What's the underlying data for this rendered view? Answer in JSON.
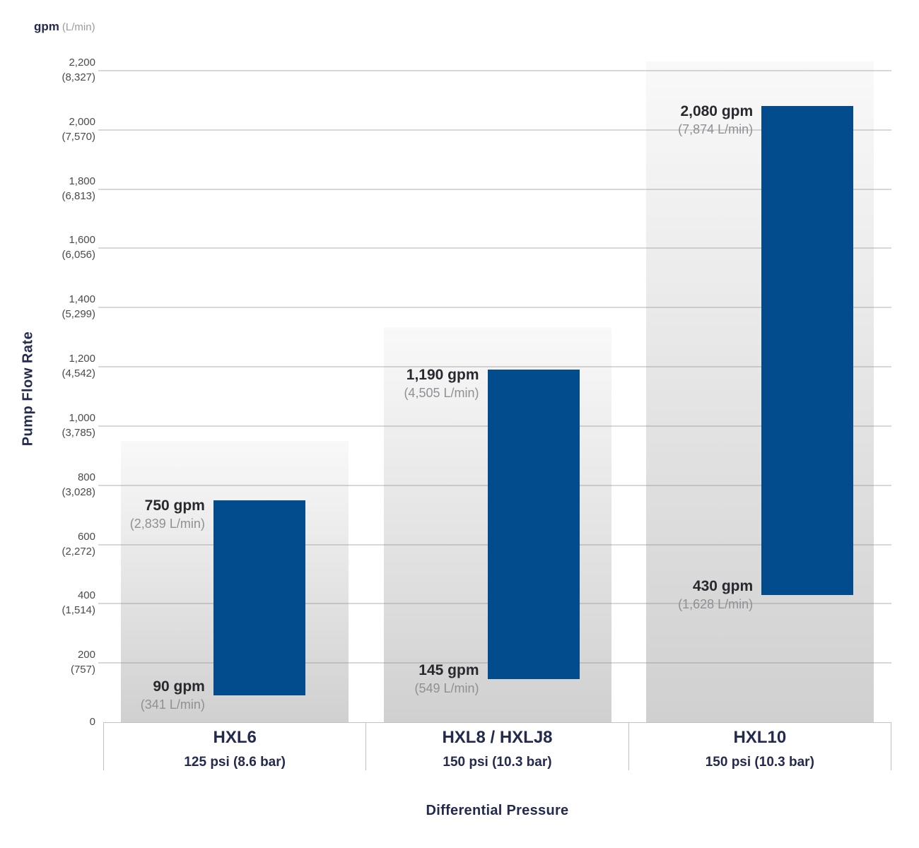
{
  "chart_data": {
    "type": "bar",
    "subtype": "floating-range-bar",
    "title": "",
    "xlabel": "Differential Pressure",
    "ylabel": "Pump Flow Rate",
    "unit_primary": "gpm",
    "unit_secondary": "(L/min)",
    "grid": true,
    "legend": false,
    "ylim": [
      0,
      2200
    ],
    "y_axis": {
      "min": 0,
      "max": 2200,
      "step": 200,
      "ticks": [
        {
          "value": 2200,
          "gpm": "2,200",
          "lmin": "(8,327)"
        },
        {
          "value": 2000,
          "gpm": "2,000",
          "lmin": "(7,570)"
        },
        {
          "value": 1800,
          "gpm": "1,800",
          "lmin": "(6,813)"
        },
        {
          "value": 1600,
          "gpm": "1,600",
          "lmin": "(6,056)"
        },
        {
          "value": 1400,
          "gpm": "1,400",
          "lmin": "(5,299)"
        },
        {
          "value": 1200,
          "gpm": "1,200",
          "lmin": "(4,542)"
        },
        {
          "value": 1000,
          "gpm": "1,000",
          "lmin": "(3,785)"
        },
        {
          "value": 800,
          "gpm": "800",
          "lmin": "(3,028)"
        },
        {
          "value": 600,
          "gpm": "600",
          "lmin": "(2,272)"
        },
        {
          "value": 400,
          "gpm": "400",
          "lmin": "(1,514)"
        },
        {
          "value": 200,
          "gpm": "200",
          "lmin": "(757)"
        },
        {
          "value": 0,
          "gpm": "0",
          "lmin": ""
        }
      ]
    },
    "categories": [
      "HXL6",
      "HXL8 / HXLJ8",
      "HXL10"
    ],
    "series": [
      {
        "model": "HXL6",
        "pressure": "125 psi (8.6 bar)",
        "min_gpm": 90,
        "max_gpm": 750,
        "min_label": "90 gpm",
        "min_sublabel": "(341 L/min)",
        "max_label": "750 gpm",
        "max_sublabel": "(2,839 L/min)",
        "bg_top_gpm": 950
      },
      {
        "model": "HXL8 / HXLJ8",
        "pressure": "150 psi (10.3 bar)",
        "min_gpm": 145,
        "max_gpm": 1190,
        "min_label": "145 gpm",
        "min_sublabel": "(549 L/min)",
        "max_label": "1,190 gpm",
        "max_sublabel": "(4,505 L/min)",
        "bg_top_gpm": 1335
      },
      {
        "model": "HXL10",
        "pressure": "150 psi (10.3 bar)",
        "min_gpm": 430,
        "max_gpm": 2080,
        "min_label": "430 gpm",
        "min_sublabel": "(1,628 L/min)",
        "max_label": "2,080 gpm",
        "max_sublabel": "(7,874 L/min)",
        "bg_top_gpm": 2230
      }
    ],
    "colors": {
      "bar": "#024b8c",
      "grid": "rgba(140,140,140,0.34)",
      "column_top": "#f9f9f9",
      "column_bottom": "#d0d0d0",
      "text_dark": "#29282e",
      "text_gray": "#8f9094",
      "heading": "#232a4d",
      "tick": "#4a4a4a",
      "axis_line": "#c2c2c2"
    }
  }
}
